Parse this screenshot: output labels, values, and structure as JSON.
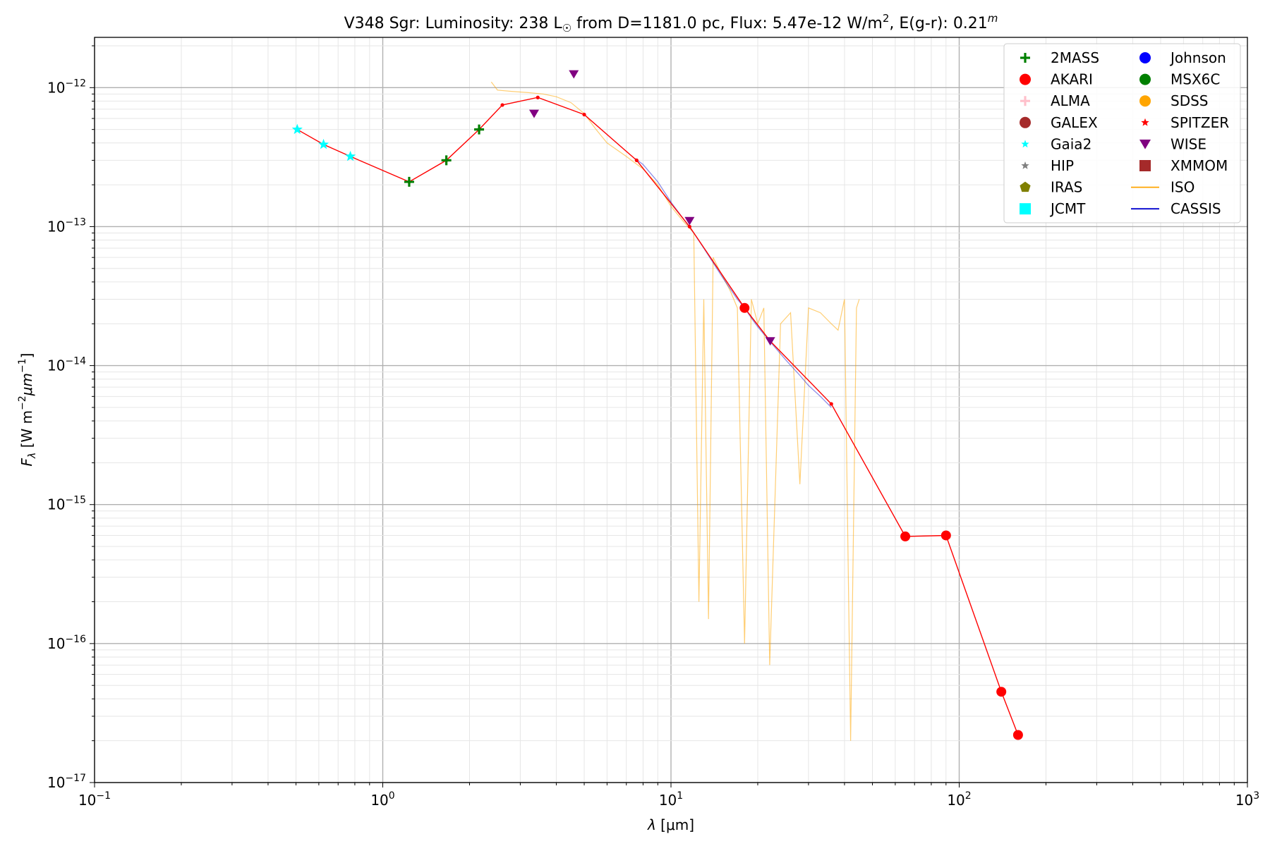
{
  "chart_data": {
    "type": "scatter",
    "title": {
      "star": "V348 Sgr:",
      "lum_prefix": "Luminosity: 238 L",
      "sun_symbol": "☉",
      "dist": " from D=1181.0 pc, Flux: 5.47e-12 W/m",
      "flux_exp": "2",
      "ext": ", E(g-r): 0.21",
      "ext_sup": "m"
    },
    "xlabel": {
      "sym": "λ",
      "unit": " [μm]"
    },
    "ylabel": {
      "sym": "F",
      "sub": "λ",
      "unit": " [W m",
      "e1": "−2",
      "mid": "μm",
      "e2": "−1",
      "end": "]"
    },
    "x_scale": "log",
    "y_scale": "log",
    "xlim": [
      0.1,
      1000
    ],
    "ylim": [
      1e-17,
      2.3e-12
    ],
    "grid": true,
    "legend_position": "top-right",
    "x_ticks": [
      {
        "value": 0.1,
        "base": "10",
        "exp": "−1"
      },
      {
        "value": 1,
        "base": "10",
        "exp": "0"
      },
      {
        "value": 10,
        "base": "10",
        "exp": "1"
      },
      {
        "value": 100,
        "base": "10",
        "exp": "2"
      },
      {
        "value": 1000,
        "base": "10",
        "exp": "3"
      }
    ],
    "y_ticks": [
      {
        "value": 1e-17,
        "base": "10",
        "exp": "−17"
      },
      {
        "value": 1e-16,
        "base": "10",
        "exp": "−16"
      },
      {
        "value": 1e-15,
        "base": "10",
        "exp": "−15"
      },
      {
        "value": 1e-14,
        "base": "10",
        "exp": "−14"
      },
      {
        "value": 1e-13,
        "base": "10",
        "exp": "−13"
      },
      {
        "value": 1e-12,
        "base": "10",
        "exp": "−12"
      }
    ],
    "legend": [
      {
        "name": "2MASS",
        "marker": "plus",
        "color": "#008000"
      },
      {
        "name": "AKARI",
        "marker": "circle",
        "color": "#ff0000"
      },
      {
        "name": "ALMA",
        "marker": "plus",
        "color": "#ffc0cb"
      },
      {
        "name": "GALEX",
        "marker": "circle",
        "color": "#a52a2a"
      },
      {
        "name": "Gaia2",
        "marker": "star",
        "color": "#00ffff"
      },
      {
        "name": "HIP",
        "marker": "star",
        "color": "#808080"
      },
      {
        "name": "IRAS",
        "marker": "pentagon",
        "color": "#808000"
      },
      {
        "name": "JCMT",
        "marker": "square",
        "color": "#00ffff"
      },
      {
        "name": "Johnson",
        "marker": "circle",
        "color": "#0000ff"
      },
      {
        "name": "MSX6C",
        "marker": "circle",
        "color": "#008000"
      },
      {
        "name": "SDSS",
        "marker": "circle",
        "color": "#ffa500"
      },
      {
        "name": "SPITZER",
        "marker": "star",
        "color": "#ff0000"
      },
      {
        "name": "WISE",
        "marker": "triangle-down",
        "color": "#800080"
      },
      {
        "name": "XMMOM",
        "marker": "square",
        "color": "#a52a2a"
      },
      {
        "name": "ISO",
        "marker": "line",
        "color": "#ffa500"
      },
      {
        "name": "CASSIS",
        "marker": "line",
        "color": "#0000cd"
      }
    ],
    "series": [
      {
        "name": "Gaia2",
        "marker": "star",
        "color": "#00ffff",
        "x": [
          0.505,
          0.623,
          0.772
        ],
        "y": [
          5e-13,
          3.9e-13,
          3.2e-13
        ]
      },
      {
        "name": "2MASS",
        "marker": "plus",
        "color": "#008000",
        "x": [
          1.235,
          1.662,
          2.159
        ],
        "y": [
          2.1e-13,
          3e-13,
          5e-13
        ]
      },
      {
        "name": "WISE",
        "marker": "triangle-down",
        "color": "#800080",
        "x": [
          3.35,
          4.6,
          11.6,
          22.1
        ],
        "y": [
          6.5e-13,
          1.25e-12,
          1.1e-13,
          1.5e-14
        ]
      },
      {
        "name": "AKARI",
        "marker": "circle",
        "color": "#ff0000",
        "x": [
          18.0,
          65.0,
          90.0,
          140.0,
          160.0
        ],
        "y": [
          2.6e-14,
          5.9e-16,
          6e-16,
          4.5e-17,
          2.2e-17
        ]
      },
      {
        "name": "ISO",
        "marker": "line",
        "color": "#ffa500",
        "x": [
          2.38,
          2.5,
          2.8,
          3.2,
          3.6,
          4.0,
          4.5,
          5.0,
          5.5,
          6.0,
          7.0,
          8.0,
          9.0,
          10.0,
          11.0,
          12.0,
          12.5,
          13.0,
          13.5,
          14.0,
          15.0,
          16.0,
          17.0,
          18.0,
          19.0,
          20.0,
          21.0,
          22.0,
          24.0,
          26.0,
          28.0,
          30.0,
          33.0,
          36.0,
          38.0,
          40.0,
          42.0,
          44.0,
          45.0
        ],
        "y": [
          1.1e-12,
          9.6e-13,
          9.4e-13,
          9.2e-13,
          9e-13,
          8.6e-13,
          7.8e-13,
          6.5e-13,
          5e-13,
          4e-13,
          3.2e-13,
          2.6e-13,
          2e-13,
          1.4e-13,
          1.1e-13,
          9e-14,
          2e-16,
          3e-14,
          1.5e-16,
          6e-14,
          4.5e-14,
          3.5e-14,
          2.6e-14,
          1e-16,
          3e-14,
          2e-14,
          2.6e-14,
          7e-17,
          2e-14,
          2.4e-14,
          1.4e-15,
          2.6e-14,
          2.4e-14,
          2e-14,
          1.8e-14,
          3e-14,
          2e-17,
          2.6e-14,
          3e-14
        ]
      },
      {
        "name": "CASSIS",
        "marker": "line",
        "color": "#0000cd",
        "x": [
          7.5,
          8.0,
          9.0,
          10.0,
          11.0,
          12.0,
          13.0,
          14.0,
          15.0,
          16.0,
          17.0,
          18.0,
          19.0,
          20.0,
          22.0,
          25.0,
          28.0,
          30.0,
          33.0,
          36.0
        ],
        "y": [
          3.1e-13,
          2.8e-13,
          2.1e-13,
          1.5e-13,
          1.15e-13,
          9e-14,
          7e-14,
          5.5e-14,
          4.4e-14,
          3.6e-14,
          3e-14,
          2.6e-14,
          2.2e-14,
          1.9e-14,
          1.5e-14,
          1.1e-14,
          8.5e-15,
          7.2e-15,
          6e-15,
          5e-15
        ]
      },
      {
        "name": "Model",
        "marker": "line",
        "color": "#ff0000",
        "x": [
          0.505,
          0.623,
          0.772,
          1.235,
          1.662,
          2.159,
          2.6,
          3.45,
          5.0,
          7.6,
          11.6,
          18.0,
          22.1,
          36.0,
          65.0,
          90.0,
          140.0,
          160.0
        ],
        "y": [
          5e-13,
          3.9e-13,
          3.2e-13,
          2.1e-13,
          3e-13,
          5e-13,
          7.5e-13,
          8.5e-13,
          6.4e-13,
          3e-13,
          1e-13,
          2.6e-14,
          1.5e-14,
          5.3e-15,
          5.9e-16,
          6e-16,
          4.5e-17,
          2.2e-17
        ]
      }
    ]
  }
}
